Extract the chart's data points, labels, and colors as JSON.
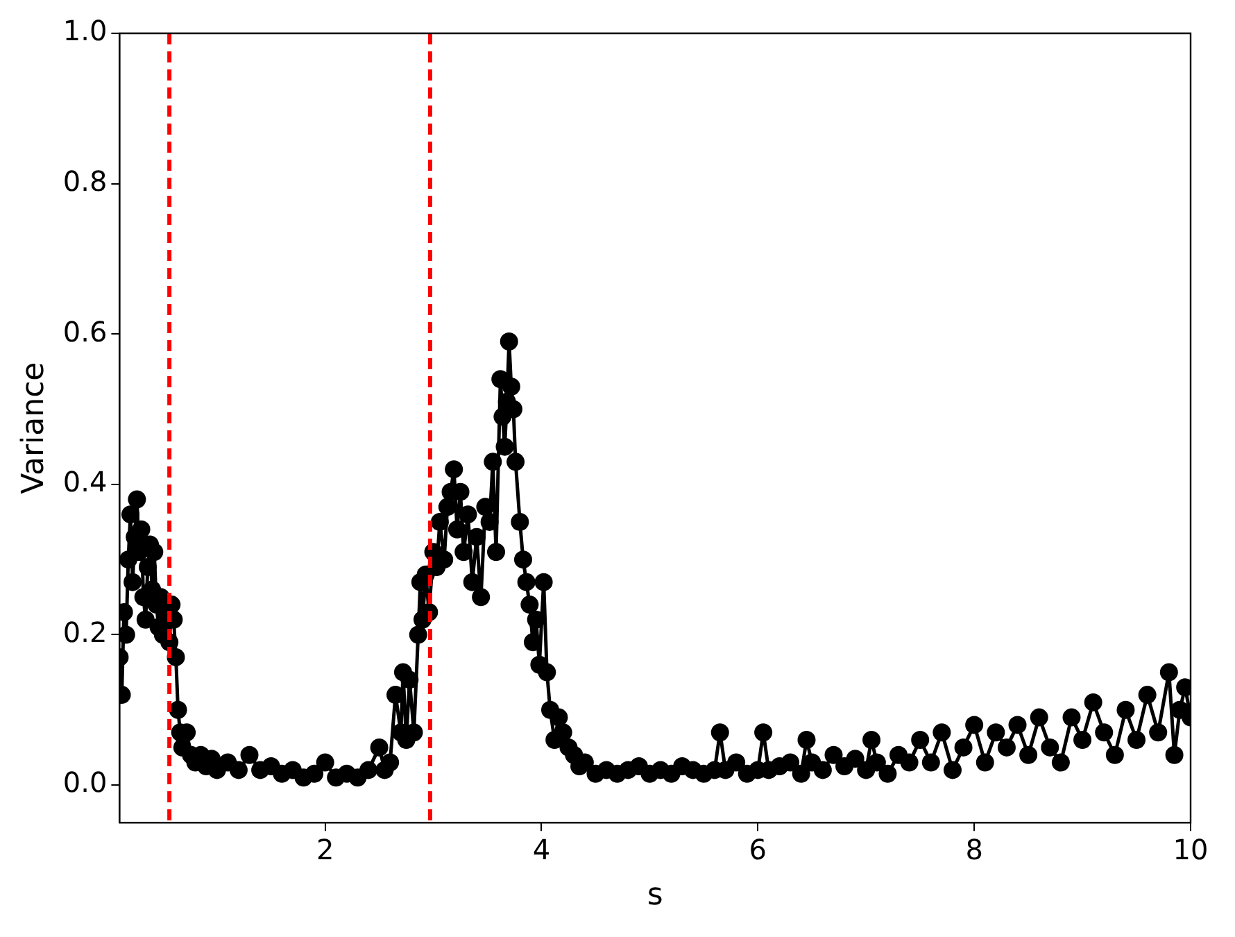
{
  "chart_data": {
    "type": "line",
    "xlabel": "s",
    "ylabel": "Variance",
    "marker": "circle",
    "line_style": "solid",
    "grid": false,
    "legend": false,
    "xlim": [
      0.1,
      10
    ],
    "xticks": [
      2,
      4,
      6,
      8,
      10
    ],
    "ylim": [
      -0.05,
      1.0
    ],
    "yticks": [
      {
        "value": 0,
        "label": "0.0"
      },
      {
        "value": 0.2,
        "label": "0.2"
      },
      {
        "value": 0.4,
        "label": "0.4"
      },
      {
        "value": 0.6,
        "label": "0.6"
      },
      {
        "value": 0.8,
        "label": "0.8"
      },
      {
        "value": 1,
        "label": "1.0"
      }
    ],
    "ref_lines": [
      {
        "axis": "x",
        "value": 0.56,
        "label": null,
        "color": "#ff0000",
        "line_style": "dashed"
      },
      {
        "axis": "x",
        "value": 2.97,
        "label": null,
        "color": "#ff0000",
        "line_style": "dashed"
      }
    ],
    "x": [
      0.1,
      0.12,
      0.14,
      0.16,
      0.18,
      0.2,
      0.22,
      0.24,
      0.26,
      0.28,
      0.3,
      0.32,
      0.34,
      0.36,
      0.38,
      0.4,
      0.42,
      0.44,
      0.46,
      0.48,
      0.5,
      0.52,
      0.54,
      0.56,
      0.58,
      0.6,
      0.62,
      0.64,
      0.66,
      0.68,
      0.72,
      0.76,
      0.8,
      0.85,
      0.9,
      0.95,
      1.0,
      1.1,
      1.2,
      1.3,
      1.4,
      1.5,
      1.6,
      1.7,
      1.8,
      1.9,
      2.0,
      2.1,
      2.2,
      2.3,
      2.4,
      2.5,
      2.55,
      2.6,
      2.65,
      2.7,
      2.72,
      2.75,
      2.78,
      2.82,
      2.86,
      2.88,
      2.9,
      2.93,
      2.96,
      3.0,
      3.03,
      3.06,
      3.1,
      3.13,
      3.16,
      3.19,
      3.22,
      3.25,
      3.28,
      3.32,
      3.36,
      3.4,
      3.44,
      3.48,
      3.52,
      3.55,
      3.58,
      3.62,
      3.64,
      3.66,
      3.68,
      3.7,
      3.72,
      3.74,
      3.76,
      3.8,
      3.83,
      3.86,
      3.89,
      3.92,
      3.95,
      3.98,
      4.02,
      4.05,
      4.08,
      4.12,
      4.16,
      4.2,
      4.25,
      4.3,
      4.35,
      4.4,
      4.5,
      4.6,
      4.7,
      4.8,
      4.9,
      5.0,
      5.1,
      5.2,
      5.3,
      5.4,
      5.5,
      5.6,
      5.65,
      5.7,
      5.8,
      5.9,
      6.0,
      6.05,
      6.1,
      6.2,
      6.3,
      6.4,
      6.45,
      6.5,
      6.6,
      6.7,
      6.8,
      6.9,
      7.0,
      7.05,
      7.1,
      7.2,
      7.3,
      7.4,
      7.5,
      7.6,
      7.7,
      7.8,
      7.9,
      8.0,
      8.1,
      8.2,
      8.3,
      8.4,
      8.5,
      8.6,
      8.7,
      8.8,
      8.9,
      9.0,
      9.1,
      9.2,
      9.3,
      9.4,
      9.5,
      9.6,
      9.7,
      9.8,
      9.85,
      9.9,
      9.95,
      10.0
    ],
    "series": [
      {
        "color": "#000000",
        "values": [
          0.17,
          0.12,
          0.23,
          0.2,
          0.3,
          0.36,
          0.27,
          0.33,
          0.38,
          0.31,
          0.34,
          0.25,
          0.22,
          0.29,
          0.32,
          0.26,
          0.31,
          0.24,
          0.21,
          0.25,
          0.2,
          0.22,
          0.23,
          0.19,
          0.24,
          0.22,
          0.17,
          0.1,
          0.07,
          0.05,
          0.07,
          0.04,
          0.03,
          0.04,
          0.025,
          0.035,
          0.02,
          0.03,
          0.02,
          0.04,
          0.02,
          0.025,
          0.015,
          0.02,
          0.01,
          0.015,
          0.03,
          0.01,
          0.015,
          0.01,
          0.02,
          0.05,
          0.02,
          0.03,
          0.12,
          0.07,
          0.15,
          0.06,
          0.14,
          0.07,
          0.2,
          0.27,
          0.22,
          0.28,
          0.23,
          0.31,
          0.29,
          0.35,
          0.3,
          0.37,
          0.39,
          0.42,
          0.34,
          0.39,
          0.31,
          0.36,
          0.27,
          0.33,
          0.25,
          0.37,
          0.35,
          0.43,
          0.31,
          0.54,
          0.49,
          0.45,
          0.51,
          0.59,
          0.53,
          0.5,
          0.43,
          0.35,
          0.3,
          0.27,
          0.24,
          0.19,
          0.22,
          0.16,
          0.27,
          0.15,
          0.1,
          0.06,
          0.09,
          0.07,
          0.05,
          0.04,
          0.025,
          0.03,
          0.015,
          0.02,
          0.015,
          0.02,
          0.025,
          0.015,
          0.02,
          0.015,
          0.025,
          0.02,
          0.015,
          0.02,
          0.07,
          0.02,
          0.03,
          0.015,
          0.02,
          0.07,
          0.02,
          0.025,
          0.03,
          0.015,
          0.06,
          0.03,
          0.02,
          0.04,
          0.025,
          0.035,
          0.02,
          0.06,
          0.03,
          0.015,
          0.04,
          0.03,
          0.06,
          0.03,
          0.07,
          0.02,
          0.05,
          0.08,
          0.03,
          0.07,
          0.05,
          0.08,
          0.04,
          0.09,
          0.05,
          0.03,
          0.09,
          0.06,
          0.11,
          0.07,
          0.04,
          0.1,
          0.06,
          0.12,
          0.07,
          0.15,
          0.04,
          0.1,
          0.13,
          0.09
        ]
      }
    ]
  }
}
